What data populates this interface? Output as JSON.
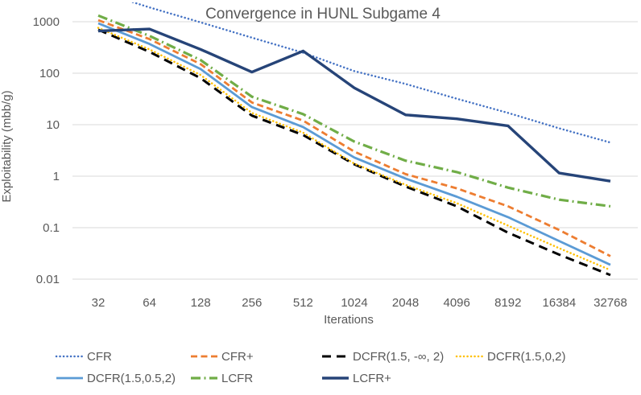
{
  "chart_data": {
    "type": "line",
    "title": "Convergence in HUNL Subgame 4",
    "xlabel": "Iterations",
    "ylabel": "Exploitability (mbb/g)",
    "x_scale": "log2",
    "y_scale": "log10",
    "grid": "horizontal-only",
    "legend_position": "bottom",
    "ylim": [
      0.01,
      1000
    ],
    "y_ticks": [
      "1000",
      "100",
      "10",
      "1",
      "0.1",
      "0.01"
    ],
    "x_ticks": [
      "32",
      "64",
      "128",
      "256",
      "512",
      "1024",
      "2048",
      "4096",
      "8192",
      "16384",
      "32768"
    ],
    "categories": [
      32,
      64,
      128,
      256,
      512,
      1024,
      2048,
      4096,
      8192,
      16384,
      32768
    ],
    "series": [
      {
        "name": "CFR",
        "color": "#4472C4",
        "style": "dotted",
        "values": [
          3900,
          1900,
          970,
          490,
          250,
          110,
          62,
          32,
          17,
          8.5,
          4.5
        ],
        "note": "clipped above plot top at x=32"
      },
      {
        "name": "CFR+",
        "color": "#ED7D31",
        "style": "dashed",
        "values": [
          1070,
          460,
          150,
          27,
          12,
          3.0,
          1.1,
          0.58,
          0.26,
          0.09,
          0.028
        ]
      },
      {
        "name": "DCFR(1.5, -∞, 2)",
        "color": "#000000",
        "style": "long-dash",
        "values": [
          700,
          260,
          80,
          15,
          6.3,
          1.7,
          0.63,
          0.26,
          0.08,
          0.03,
          0.012
        ]
      },
      {
        "name": "DCFR(1.5,0,2)",
        "color": "#FFC000",
        "style": "dotted",
        "values": [
          760,
          290,
          92,
          17,
          7.0,
          1.75,
          0.68,
          0.3,
          0.11,
          0.04,
          0.015
        ]
      },
      {
        "name": "DCFR(1.5,0.5,2)",
        "color": "#5B9BD5",
        "style": "solid",
        "values": [
          930,
          370,
          120,
          22,
          9.0,
          2.3,
          0.9,
          0.4,
          0.16,
          0.055,
          0.019
        ]
      },
      {
        "name": "LCFR",
        "color": "#70AD47",
        "style": "dash-dot",
        "values": [
          1320,
          530,
          180,
          35,
          16,
          4.7,
          2.0,
          1.2,
          0.6,
          0.35,
          0.26
        ]
      },
      {
        "name": "LCFR+",
        "color": "#264478",
        "style": "solid",
        "values": [
          660,
          720,
          290,
          105,
          270,
          52,
          15.5,
          13,
          9.5,
          1.15,
          0.8
        ]
      }
    ],
    "legend_rows": [
      [
        0,
        1,
        2,
        3
      ],
      [
        4,
        5,
        6
      ]
    ],
    "colors": {
      "grid": "#D9D9D9",
      "axis_text": "#595959",
      "background": "#FFFFFF"
    }
  }
}
